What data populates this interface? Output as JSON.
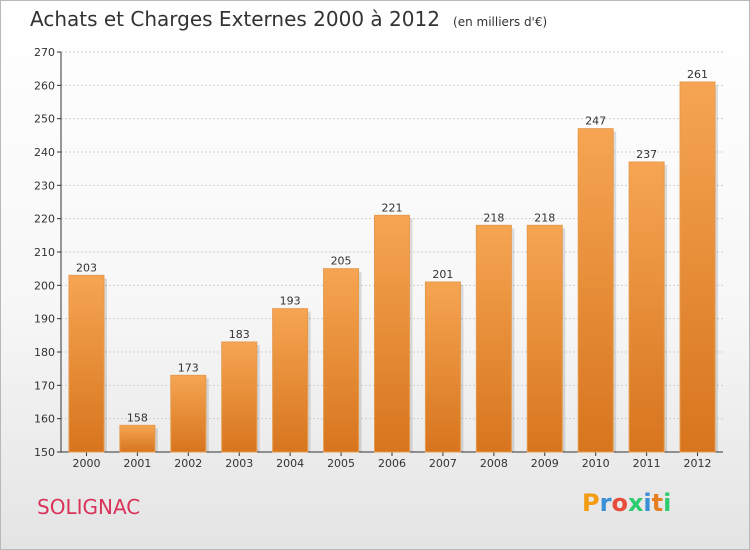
{
  "title": "Achats et Charges Externes 2000 à 2012",
  "subtitle": "(en milliers d'€)",
  "town": "SOLIGNAC",
  "brand": {
    "letters": [
      "P",
      "r",
      "o",
      "x",
      "i",
      "t",
      "i"
    ],
    "colors": [
      "#f39c12",
      "#3b8fd6",
      "#e74c3c",
      "#2ecc71",
      "#3b8fd6",
      "#e67e22",
      "#2ecc71"
    ]
  },
  "colors": {
    "bar_light": "#f6a552",
    "bar_dark": "#d7751e",
    "grid": "#cfcfcf",
    "axis": "#333333"
  },
  "chart_data": {
    "type": "bar",
    "title": "Achats et Charges Externes 2000 à 2012",
    "subtitle": "(en milliers d'€)",
    "categories": [
      "2000",
      "2001",
      "2002",
      "2003",
      "2004",
      "2005",
      "2006",
      "2007",
      "2008",
      "2009",
      "2010",
      "2011",
      "2012"
    ],
    "values": [
      203,
      158,
      173,
      183,
      193,
      205,
      221,
      201,
      218,
      218,
      247,
      237,
      261
    ],
    "ylim": [
      150,
      270
    ],
    "yticks": [
      150,
      160,
      170,
      180,
      190,
      200,
      210,
      220,
      230,
      240,
      250,
      260,
      270
    ],
    "grid": "horizontal dotted",
    "data_labels": true
  }
}
